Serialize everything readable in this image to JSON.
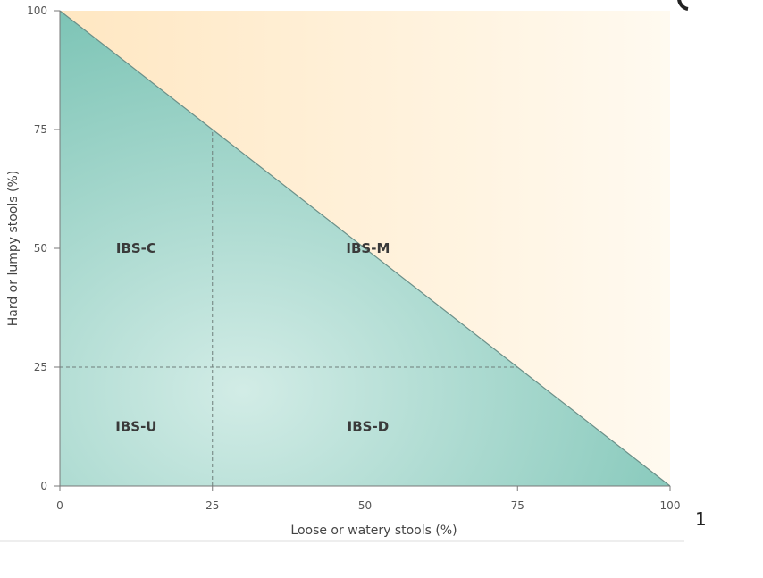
{
  "chart_data": {
    "type": "area",
    "xlabel": "Loose or watery stools (%)",
    "ylabel": "Hard or lumpy stools (%)",
    "xlim": [
      0,
      100
    ],
    "ylim": [
      0,
      100
    ],
    "x_ticks": [
      "0",
      "25",
      "50",
      "75",
      "100"
    ],
    "y_ticks": [
      "0",
      "25",
      "50",
      "75",
      "100"
    ],
    "boundary_line": [
      [
        0,
        100
      ],
      [
        100,
        0
      ]
    ],
    "thresholds": {
      "x": 25,
      "y": 25
    },
    "regions": [
      {
        "label": "IBS-C",
        "x": 0,
        "y": 25
      },
      {
        "label": "IBS-M",
        "x": 25,
        "y": 25
      },
      {
        "label": "IBS-U",
        "x": 0,
        "y": 0
      },
      {
        "label": "IBS-D",
        "x": 25,
        "y": 0
      }
    ],
    "grid": false,
    "colors": {
      "valid_region": "#8ccdbf",
      "valid_region_dark": "#78c2b3",
      "valid_region_light": "#d2ece6",
      "outside_region": "#ffe7c2",
      "outside_region_light": "#fffaf0",
      "boundary": "#6b8f88",
      "dashed": "#6f7e7b"
    }
  },
  "stray_text": "1"
}
